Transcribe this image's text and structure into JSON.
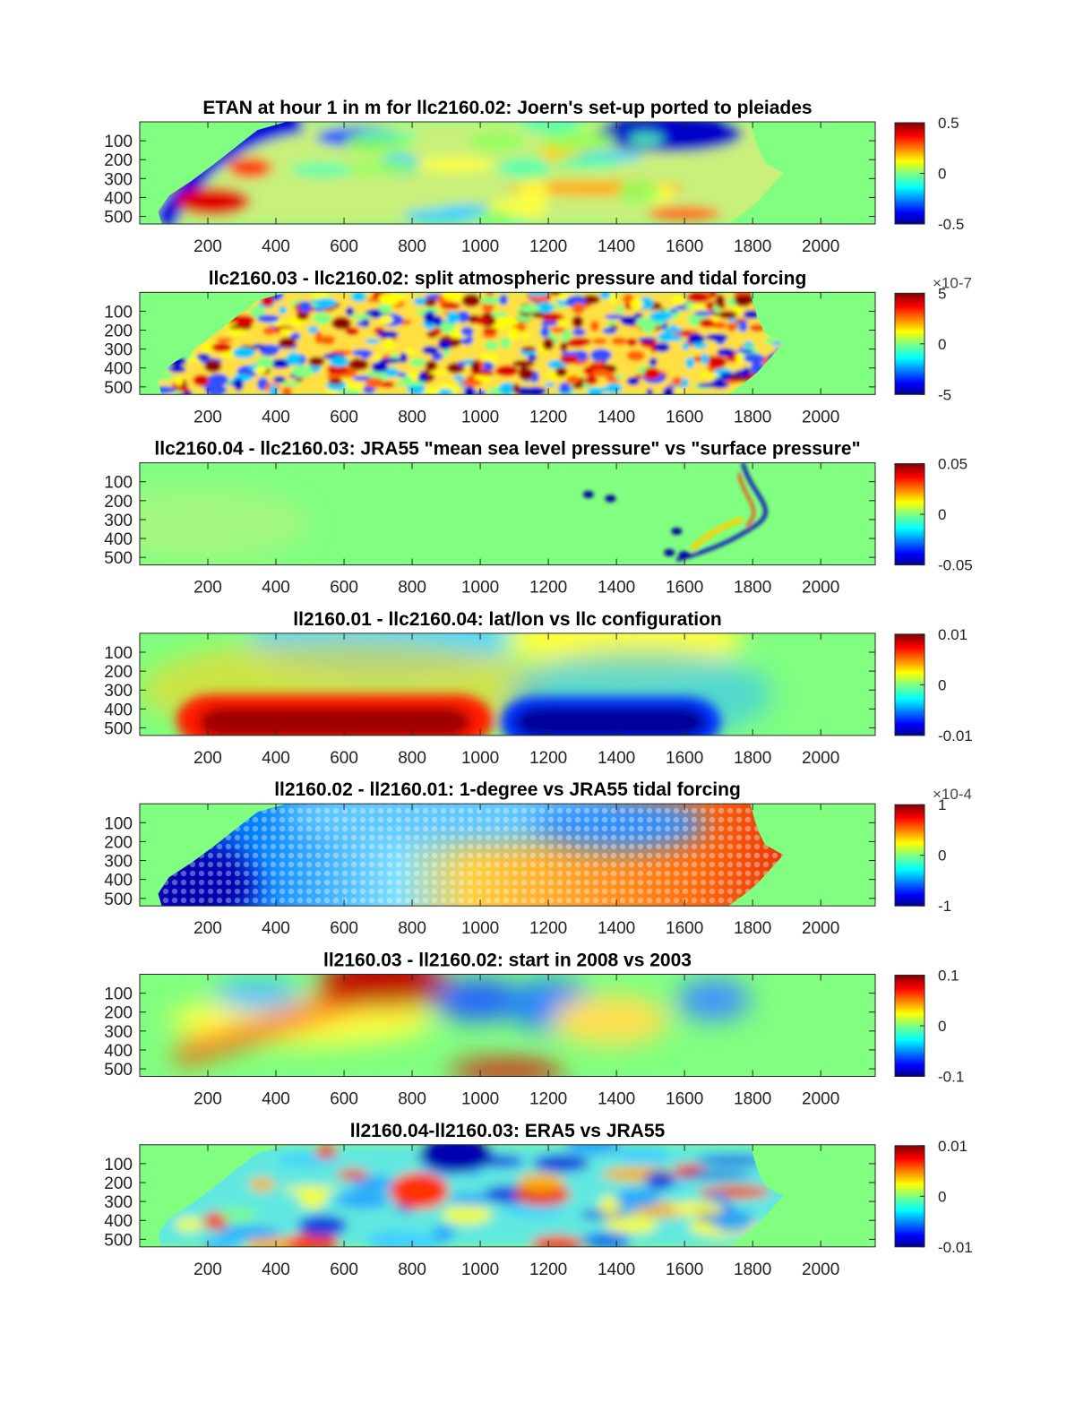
{
  "chart_data": [
    {
      "type": "heatmap",
      "title": "ETAN at hour 1 in m for llc2160.02: Joern's set-up ported to pleiades",
      "x_ticks": [
        "200",
        "400",
        "600",
        "800",
        "1000",
        "1200",
        "1400",
        "1600",
        "1800",
        "2000"
      ],
      "y_ticks": [
        "500",
        "400",
        "300",
        "200",
        "100"
      ],
      "xlim": [
        0,
        2160
      ],
      "ylim": [
        0,
        540
      ],
      "colorbar": {
        "colormap": "jet",
        "range": [
          -0.5,
          0.5
        ],
        "ticks": [
          "0.5",
          "0",
          "-0.5"
        ],
        "multiplier": ""
      },
      "field_style": "eddies"
    },
    {
      "type": "heatmap",
      "title": "llc2160.03 - llc2160.02: split atmospheric pressure and tidal forcing",
      "x_ticks": [
        "200",
        "400",
        "600",
        "800",
        "1000",
        "1200",
        "1400",
        "1600",
        "1800",
        "2000"
      ],
      "y_ticks": [
        "500",
        "400",
        "300",
        "200",
        "100"
      ],
      "xlim": [
        0,
        2160
      ],
      "ylim": [
        0,
        540
      ],
      "colorbar": {
        "colormap": "jet",
        "range": [
          -5e-07,
          5e-07
        ],
        "ticks": [
          "5",
          "0",
          "-5"
        ],
        "multiplier": "×10-7"
      },
      "field_style": "noise"
    },
    {
      "type": "heatmap",
      "title": "llc2160.04 - llc2160.03: JRA55 \"mean sea level pressure\" vs \"surface pressure\"",
      "x_ticks": [
        "200",
        "400",
        "600",
        "800",
        "1000",
        "1200",
        "1400",
        "1600",
        "1800",
        "2000"
      ],
      "y_ticks": [
        "500",
        "400",
        "300",
        "200",
        "100"
      ],
      "xlim": [
        0,
        2160
      ],
      "ylim": [
        0,
        540
      ],
      "colorbar": {
        "colormap": "jet",
        "range": [
          -0.05,
          0.05
        ],
        "ticks": [
          "0.05",
          "0",
          "-0.05"
        ],
        "multiplier": ""
      },
      "field_style": "coast"
    },
    {
      "type": "heatmap",
      "title": "ll2160.01 - llc2160.04: lat/lon vs llc configuration",
      "x_ticks": [
        "200",
        "400",
        "600",
        "800",
        "1000",
        "1200",
        "1400",
        "1600",
        "1800",
        "2000"
      ],
      "y_ticks": [
        "500",
        "400",
        "300",
        "200",
        "100"
      ],
      "xlim": [
        0,
        2160
      ],
      "ylim": [
        0,
        540
      ],
      "colorbar": {
        "colormap": "jet",
        "range": [
          -0.01,
          0.01
        ],
        "ticks": [
          "0.01",
          "0",
          "-0.01"
        ],
        "multiplier": ""
      },
      "field_style": "dipole"
    },
    {
      "type": "heatmap",
      "title": "ll2160.02 - ll2160.01: 1-degree vs JRA55 tidal forcing",
      "x_ticks": [
        "200",
        "400",
        "600",
        "800",
        "1000",
        "1200",
        "1400",
        "1600",
        "1800",
        "2000"
      ],
      "y_ticks": [
        "500",
        "400",
        "300",
        "200",
        "100"
      ],
      "xlim": [
        0,
        2160
      ],
      "ylim": [
        0,
        540
      ],
      "colorbar": {
        "colormap": "jet",
        "range": [
          -0.0001,
          0.0001
        ],
        "ticks": [
          "1",
          "0",
          "-1"
        ],
        "multiplier": "×10-4"
      },
      "field_style": "grid"
    },
    {
      "type": "heatmap",
      "title": "ll2160.03 - ll2160.02: start in 2008 vs 2003",
      "x_ticks": [
        "200",
        "400",
        "600",
        "800",
        "1000",
        "1200",
        "1400",
        "1600",
        "1800",
        "2000"
      ],
      "y_ticks": [
        "500",
        "400",
        "300",
        "200",
        "100"
      ],
      "xlim": [
        0,
        2160
      ],
      "ylim": [
        0,
        540
      ],
      "colorbar": {
        "colormap": "jet",
        "range": [
          -0.1,
          0.1
        ],
        "ticks": [
          "0.1",
          "0",
          "-0.1"
        ],
        "multiplier": ""
      },
      "field_style": "smooth"
    },
    {
      "type": "heatmap",
      "title": "ll2160.04-ll2160.03: ERA5 vs JRA55",
      "x_ticks": [
        "200",
        "400",
        "600",
        "800",
        "1000",
        "1200",
        "1400",
        "1600",
        "1800",
        "2000"
      ],
      "y_ticks": [
        "500",
        "400",
        "300",
        "200",
        "100"
      ],
      "xlim": [
        0,
        2160
      ],
      "ylim": [
        0,
        540
      ],
      "colorbar": {
        "colormap": "jet",
        "range": [
          -0.01,
          0.01
        ],
        "ticks": [
          "0.01",
          "0",
          "-0.01"
        ],
        "multiplier": ""
      },
      "field_style": "patchy"
    }
  ]
}
